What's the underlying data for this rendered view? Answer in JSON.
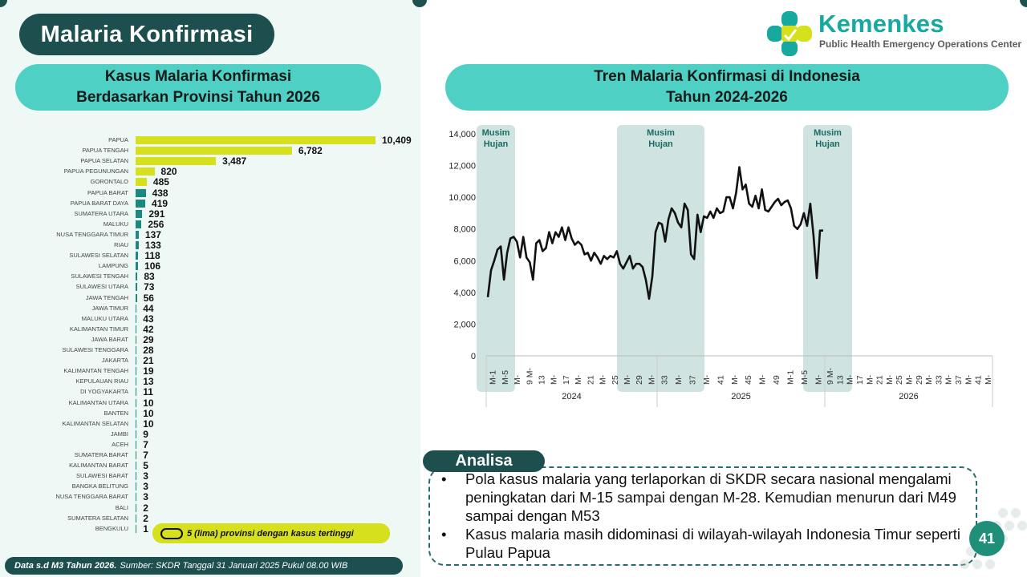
{
  "page": {
    "title": "Malaria Konfirmasi",
    "page_number": "41"
  },
  "logo": {
    "name": "Kemenkes",
    "subtitle": "Public Health Emergency Operations Center"
  },
  "left_panel": {
    "title_line1": "Kasus Malaria Konfirmasi",
    "title_line2": "Berdasarkan Provinsi Tahun 2026",
    "note": "5 (lima) provinsi dengan kasus tertinggi",
    "footer_bold": "Data s.d M3 Tahun 2026.",
    "footer_text": "Sumber: SKDR Tanggal 31 Januari 2025 Pukul 08.00 WIB"
  },
  "right_panel": {
    "title_line1": "Tren Malaria Konfirmasi di Indonesia",
    "title_line2": "Tahun 2024-2026"
  },
  "analisa": {
    "label": "Analisa",
    "bullet": "•",
    "items": [
      "Pola kasus malaria yang terlaporkan di SKDR secara nasional mengalami peningkatan dari M-15 sampai dengan M-28. Kemudian menurun dari M49 sampai dengan M53",
      "Kasus malaria masih didominasi di wilayah-wilayah Indonesia Timur seperti Pulau Papua"
    ]
  },
  "colors": {
    "dark_teal": "#1c4f4d",
    "pill_teal": "#4ed1c4",
    "highlight_yellow": "#d6e01c",
    "bar_teal": "#1a8a80",
    "season_band": "#cfe3e1",
    "line": "#111111"
  },
  "chart_data": [
    {
      "type": "bar",
      "orientation": "horizontal",
      "title": "Kasus Malaria Konfirmasi Berdasarkan Provinsi Tahun 2026",
      "categories": [
        "PAPUA",
        "PAPUA TENGAH",
        "PAPUA SELATAN",
        "PAPUA PEGUNUNGAN",
        "GORONTALO",
        "PAPUA BARAT",
        "PAPUA BARAT DAYA",
        "SUMATERA UTARA",
        "MALUKU",
        "NUSA TENGGARA TIMUR",
        "RIAU",
        "SULAWESI SELATAN",
        "LAMPUNG",
        "SULAWESI TENGAH",
        "SULAWESI UTARA",
        "JAWA TENGAH",
        "JAWA TIMUR",
        "MALUKU UTARA",
        "KALIMANTAN TIMUR",
        "JAWA BARAT",
        "SULAWESI TENGGARA",
        "JAKARTA",
        "KALIMANTAN TENGAH",
        "KEPULAUAN RIAU",
        "DI YOGYAKARTA",
        "KALIMANTAN UTARA",
        "BANTEN",
        "KALIMANTAN SELATAN",
        "JAMBI",
        "ACEH",
        "SUMATERA BARAT",
        "KALIMANTAN BARAT",
        "SULAWESI BARAT",
        "BANGKA BELITUNG",
        "NUSA TENGGARA BARAT",
        "BALI",
        "SUMATERA SELATAN",
        "BENGKULU"
      ],
      "values": [
        10409,
        6782,
        3487,
        820,
        485,
        438,
        419,
        291,
        256,
        137,
        133,
        118,
        106,
        83,
        73,
        56,
        44,
        43,
        42,
        29,
        28,
        21,
        19,
        13,
        11,
        10,
        10,
        10,
        9,
        7,
        7,
        5,
        3,
        3,
        3,
        2,
        2,
        1
      ],
      "value_labels": [
        "10,409",
        "6,782",
        "3,487",
        "820",
        "485",
        "438",
        "419",
        "291",
        "256",
        "137",
        "133",
        "118",
        "106",
        "83",
        "73",
        "56",
        "44",
        "43",
        "42",
        "29",
        "28",
        "21",
        "19",
        "13",
        "11",
        "10",
        "10",
        "10",
        "9",
        "7",
        "7",
        "5",
        "3",
        "3",
        "3",
        "2",
        "2",
        "1"
      ],
      "highlight_count": 5,
      "highlight_color": "#d6e01c",
      "bar_color": "#1a8a80",
      "xlim": [
        0,
        10409
      ]
    },
    {
      "type": "line",
      "title": "Tren Malaria Konfirmasi di Indonesia Tahun 2024-2026",
      "ylim": [
        0,
        14000
      ],
      "y_ticks": [
        "14,000",
        "12,000",
        "10,000",
        "8,000",
        "6,000",
        "4,000",
        "2,000",
        "0"
      ],
      "y_tick_values": [
        14000,
        12000,
        10000,
        8000,
        6000,
        4000,
        2000,
        0
      ],
      "years": [
        "2024",
        "2025",
        "2026"
      ],
      "weeks_per_year": [
        53,
        52,
        52
      ],
      "x_tick_labels": {
        "2024": [
          "M-1",
          "M-5",
          "M-",
          "9 M-",
          "13",
          "M-",
          "17",
          "M-",
          "21",
          "M-",
          "25",
          "M-",
          "29",
          "M-"
        ],
        "2025": [
          "33",
          "M-",
          "37",
          "M-",
          "41",
          "M-",
          "45",
          "M-",
          "49",
          "M-1",
          "M-5",
          "M-"
        ],
        "2026": [
          "9 M-",
          "13",
          "M-",
          "17",
          "M-",
          "21",
          "M-",
          "25",
          "M-",
          "29",
          "M-",
          "33",
          "M-",
          "37",
          "M-",
          "41",
          "M-"
        ]
      },
      "season_label": "Musim Hujan",
      "season_bands": [
        [
          1,
          3
        ],
        [
          10,
          16
        ],
        [
          23,
          26
        ]
      ],
      "series": [
        {
          "values": [
            3700,
            5400,
            6000,
            6700,
            6900,
            4800,
            6500,
            7400,
            7500,
            7200,
            6200,
            7500,
            6200,
            5900,
            4800,
            7100,
            7300,
            6600,
            6800,
            7800,
            7100,
            7800,
            7500,
            8100,
            7300,
            8100,
            7400,
            7000,
            7200,
            7000,
            6400,
            6500,
            6000,
            6500,
            6200,
            5800,
            6300,
            6100,
            6300,
            6200,
            6600,
            5800,
            5500,
            5900,
            6300,
            5500,
            5800,
            5800,
            5600,
            4800,
            3600,
            5000,
            7800,
            8400,
            8300,
            7200,
            8600,
            9300,
            9000,
            8400,
            8100,
            9600,
            9200,
            6400,
            6100,
            8900,
            7800,
            8800,
            8700,
            9100,
            8700,
            9300,
            9000,
            9100,
            10000,
            10000,
            9300,
            10300,
            11900,
            10500,
            10800,
            9600,
            9400,
            10100,
            9300,
            10500,
            9200,
            9100,
            9400,
            9700,
            9900,
            9500,
            9700,
            9800,
            9300,
            8200,
            8000,
            8300,
            9000,
            8200,
            9600,
            7600,
            4900,
            7900,
            7900
          ]
        }
      ]
    }
  ]
}
